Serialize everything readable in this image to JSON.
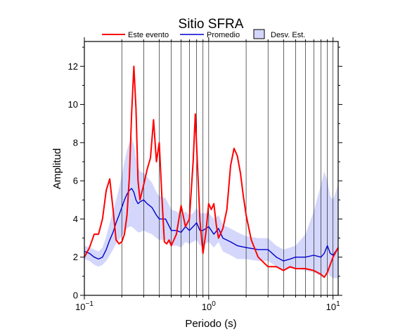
{
  "chart_data": {
    "type": "line",
    "title": "Sitio SFRA",
    "xlabel": "Periodo (s)",
    "ylabel": "Amplitud",
    "xscale": "log",
    "xlim": [
      0.1,
      11
    ],
    "ylim": [
      0,
      13.3
    ],
    "grid": "x-log-minor-and-major",
    "legend_position": "top",
    "x_tick_labels": [
      {
        "mantissa": "10",
        "exponent": "−1",
        "value": 0.1
      },
      {
        "mantissa": "10",
        "exponent": "0",
        "value": 1
      },
      {
        "mantissa": "10",
        "exponent": "1",
        "value": 10
      }
    ],
    "y_ticks": [
      0,
      2,
      4,
      6,
      8,
      10,
      12
    ],
    "y_tick_labels": [
      "0",
      "2",
      "4",
      "6",
      "8",
      "10",
      "12"
    ],
    "legend": {
      "event": "Este evento",
      "mean": "Promedio",
      "std": "Desv. Est."
    },
    "colors": {
      "event": "#ff0000",
      "mean": "#0000cc",
      "std_fill": "#d4d7fb",
      "std_stroke": "#000000",
      "axis": "#000000",
      "grid": "#000000"
    },
    "series": [
      {
        "name": "Este evento",
        "x": [
          0.1,
          0.11,
          0.12,
          0.13,
          0.14,
          0.15,
          0.16,
          0.17,
          0.18,
          0.19,
          0.2,
          0.21,
          0.22,
          0.23,
          0.24,
          0.25,
          0.26,
          0.27,
          0.28,
          0.3,
          0.32,
          0.34,
          0.36,
          0.38,
          0.4,
          0.42,
          0.44,
          0.46,
          0.48,
          0.5,
          0.55,
          0.6,
          0.65,
          0.7,
          0.75,
          0.78,
          0.8,
          0.85,
          0.9,
          0.95,
          1.0,
          1.05,
          1.1,
          1.15,
          1.2,
          1.3,
          1.4,
          1.5,
          1.6,
          1.7,
          1.8,
          1.9,
          2.0,
          2.2,
          2.5,
          3.0,
          3.5,
          4.0,
          4.5,
          5.0,
          6.0,
          7.0,
          8.0,
          8.5,
          9.0,
          10.0,
          11.0
        ],
        "y": [
          2.0,
          2.5,
          3.2,
          3.2,
          4.0,
          5.5,
          6.1,
          4.5,
          2.9,
          2.7,
          2.8,
          3.2,
          4.2,
          6.2,
          9.5,
          12.0,
          9.8,
          6.0,
          5.0,
          5.8,
          6.6,
          7.2,
          9.2,
          7.0,
          8.0,
          5.2,
          2.8,
          2.7,
          2.9,
          2.6,
          3.2,
          4.7,
          3.6,
          4.0,
          7.0,
          9.5,
          7.8,
          3.9,
          2.2,
          3.3,
          4.8,
          4.5,
          4.8,
          3.7,
          3.0,
          3.5,
          4.5,
          6.8,
          7.7,
          7.3,
          6.4,
          5.2,
          4.2,
          2.9,
          2.0,
          1.5,
          1.5,
          1.3,
          1.5,
          1.4,
          1.4,
          1.3,
          1.1,
          0.95,
          1.2,
          2.0,
          2.5
        ]
      },
      {
        "name": "Promedio",
        "x": [
          0.1,
          0.11,
          0.12,
          0.13,
          0.14,
          0.15,
          0.16,
          0.17,
          0.18,
          0.19,
          0.2,
          0.21,
          0.22,
          0.23,
          0.24,
          0.25,
          0.26,
          0.27,
          0.28,
          0.3,
          0.32,
          0.35,
          0.38,
          0.4,
          0.45,
          0.5,
          0.55,
          0.6,
          0.65,
          0.7,
          0.75,
          0.8,
          0.85,
          0.9,
          1.0,
          1.1,
          1.2,
          1.3,
          1.5,
          1.7,
          2.0,
          2.5,
          3.0,
          3.5,
          4.0,
          4.5,
          5.0,
          6.0,
          7.0,
          8.0,
          8.5,
          9.0,
          9.5,
          10.0,
          11.0
        ],
        "y": [
          2.3,
          2.2,
          2.0,
          1.9,
          2.0,
          2.4,
          2.9,
          3.3,
          3.8,
          4.2,
          4.6,
          5.0,
          5.3,
          5.5,
          5.6,
          5.4,
          5.0,
          4.8,
          4.9,
          5.0,
          4.8,
          4.6,
          4.2,
          4.0,
          4.0,
          3.4,
          3.4,
          3.3,
          3.6,
          3.4,
          3.6,
          3.8,
          3.4,
          3.4,
          3.6,
          3.2,
          3.5,
          3.0,
          2.8,
          2.6,
          2.5,
          2.4,
          2.4,
          2.0,
          1.8,
          1.9,
          2.0,
          2.0,
          2.1,
          2.0,
          2.2,
          2.6,
          2.2,
          2.1,
          2.5
        ]
      },
      {
        "name": "Desv. Est.",
        "x": [
          0.1,
          0.11,
          0.12,
          0.13,
          0.14,
          0.15,
          0.16,
          0.17,
          0.18,
          0.19,
          0.2,
          0.21,
          0.22,
          0.23,
          0.24,
          0.25,
          0.26,
          0.27,
          0.28,
          0.3,
          0.32,
          0.35,
          0.38,
          0.4,
          0.45,
          0.5,
          0.55,
          0.6,
          0.65,
          0.7,
          0.75,
          0.8,
          0.85,
          0.9,
          1.0,
          1.1,
          1.2,
          1.3,
          1.5,
          1.7,
          2.0,
          2.5,
          3.0,
          3.5,
          4.0,
          4.5,
          5.0,
          6.0,
          7.0,
          8.0,
          8.5,
          9.0,
          9.5,
          10.0,
          11.0
        ],
        "upper": [
          2.6,
          2.5,
          2.4,
          2.3,
          2.5,
          3.1,
          3.8,
          4.4,
          5.0,
          5.6,
          6.3,
          7.0,
          7.6,
          8.0,
          8.3,
          7.9,
          7.2,
          6.7,
          6.5,
          6.4,
          6.2,
          5.9,
          5.4,
          5.2,
          5.1,
          4.5,
          4.4,
          4.2,
          4.4,
          4.2,
          4.3,
          4.6,
          4.3,
          4.3,
          4.3,
          4.0,
          4.2,
          3.7,
          3.5,
          3.3,
          3.1,
          3.0,
          3.0,
          2.6,
          2.4,
          2.5,
          2.6,
          3.2,
          4.4,
          5.8,
          6.5,
          6.0,
          5.2,
          5.0,
          5.8
        ],
        "lower": [
          1.9,
          1.8,
          1.6,
          1.5,
          1.6,
          1.8,
          2.1,
          2.4,
          2.7,
          2.9,
          3.1,
          3.3,
          3.5,
          3.6,
          3.6,
          3.5,
          3.4,
          3.3,
          3.3,
          3.4,
          3.3,
          3.2,
          3.0,
          2.9,
          2.9,
          2.6,
          2.6,
          2.5,
          2.8,
          2.7,
          2.8,
          2.9,
          2.6,
          2.6,
          2.8,
          2.5,
          2.8,
          2.3,
          2.1,
          1.9,
          1.9,
          1.8,
          1.8,
          1.5,
          1.3,
          1.4,
          1.4,
          1.3,
          1.2,
          1.0,
          1.1,
          1.2,
          1.0,
          0.9,
          0.9
        ]
      }
    ]
  }
}
